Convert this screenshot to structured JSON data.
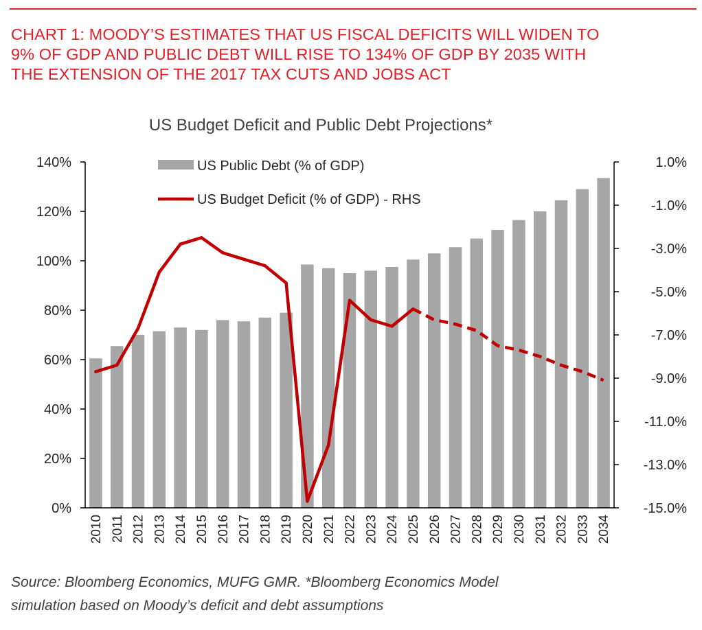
{
  "headline": {
    "lines": [
      "CHART 1: MOODY’S ESTIMATES THAT US FISCAL DEFICITS WILL WIDEN TO",
      "9% OF GDP AND PUBLIC DEBT WILL RISE TO 134% OF GDP BY 2035 WITH",
      "THE EXTENSION OF THE 2017 TAX CUTS AND JOBS ACT"
    ]
  },
  "chart_data": {
    "type": "bar",
    "title": "US Budget Deficit and Public Debt Projections*",
    "categories": [
      "2010",
      "2011",
      "2012",
      "2013",
      "2014",
      "2015",
      "2016",
      "2017",
      "2018",
      "2019",
      "2020",
      "2021",
      "2022",
      "2023",
      "2024",
      "2025",
      "2026",
      "2027",
      "2028",
      "2029",
      "2030",
      "2031",
      "2032",
      "2033",
      "2034"
    ],
    "series": [
      {
        "name": "US Public Debt (% of GDP)",
        "type": "bar",
        "axis": "left",
        "color": "#a6a6a6",
        "values": [
          60.5,
          65.5,
          70,
          71.5,
          73,
          72,
          76,
          75.5,
          77,
          79,
          98.5,
          97,
          95,
          96,
          97.5,
          100.5,
          103,
          105.5,
          109,
          112.5,
          116.5,
          120,
          124.5,
          129,
          133.5
        ]
      },
      {
        "name": "US Budget Deficit (% of GDP) - RHS",
        "type": "line",
        "axis": "right",
        "color": "#c00000",
        "values": [
          -8.7,
          -8.4,
          -6.7,
          -4.1,
          -2.8,
          -2.5,
          -3.2,
          -3.5,
          -3.8,
          -4.6,
          -14.7,
          -12.1,
          -5.4,
          -6.3,
          -6.6,
          -5.8,
          -6.3,
          -6.5,
          -6.8,
          -7.5,
          -7.7,
          -8.0,
          -8.4,
          -8.7,
          -9.1
        ],
        "dashed_from_category": "2025"
      }
    ],
    "y_left": {
      "min": 0,
      "max": 140,
      "step": 20,
      "tick_labels": [
        "0%",
        "20%",
        "40%",
        "60%",
        "80%",
        "100%",
        "120%",
        "140%"
      ]
    },
    "y_right": {
      "min": -15,
      "max": 1,
      "step": 2,
      "tick_labels": [
        "-15.0%",
        "-13.0%",
        "-11.0%",
        "-9.0%",
        "-7.0%",
        "-5.0%",
        "-3.0%",
        "-1.0%",
        "1.0%"
      ]
    },
    "grid": false,
    "legend_position": "top-left"
  },
  "source": {
    "lines": [
      "Source: Bloomberg Economics, MUFG GMR. *Bloomberg Economics Model",
      "simulation based on Moody’s deficit and debt assumptions"
    ]
  }
}
